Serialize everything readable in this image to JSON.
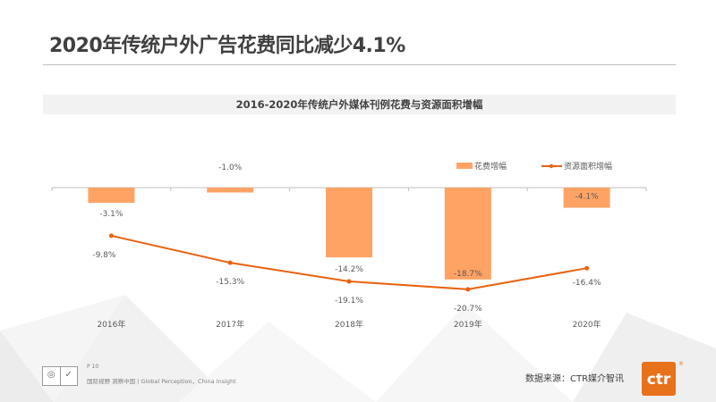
{
  "header": {
    "title": "2020年传统户外广告花费同比减少4.1%"
  },
  "chart_data": {
    "type": "bar+line",
    "title": "2016-2020年传统户外媒体刊例花费与资源面积增幅",
    "categories": [
      "2016年",
      "2017年",
      "2018年",
      "2019年",
      "2020年"
    ],
    "series": [
      {
        "name": "花费增幅",
        "type": "bar",
        "color": "#ffa365",
        "values": [
          -3.1,
          -1.0,
          -14.2,
          -18.7,
          -4.1
        ],
        "labels": [
          "-3.1%",
          "-1.0%",
          "-14.2%",
          "-18.7%",
          "-4.1%"
        ]
      },
      {
        "name": "资源面积增幅",
        "type": "line",
        "color": "#e8620f",
        "values": [
          -9.8,
          -15.3,
          -19.1,
          -20.7,
          -16.4
        ],
        "labels": [
          "-9.8%",
          "-15.3%",
          "-19.1%",
          "-20.7%",
          "-16.4%"
        ]
      }
    ],
    "legend_position": "top-right",
    "grid": false
  },
  "footer": {
    "page": "P 10",
    "slogan": "国际视野 洞察中国 | Global Perception，China Insight",
    "source": "数据来源：CTR媒介智讯",
    "logo_text": "ctr",
    "logo_reg": "®"
  }
}
